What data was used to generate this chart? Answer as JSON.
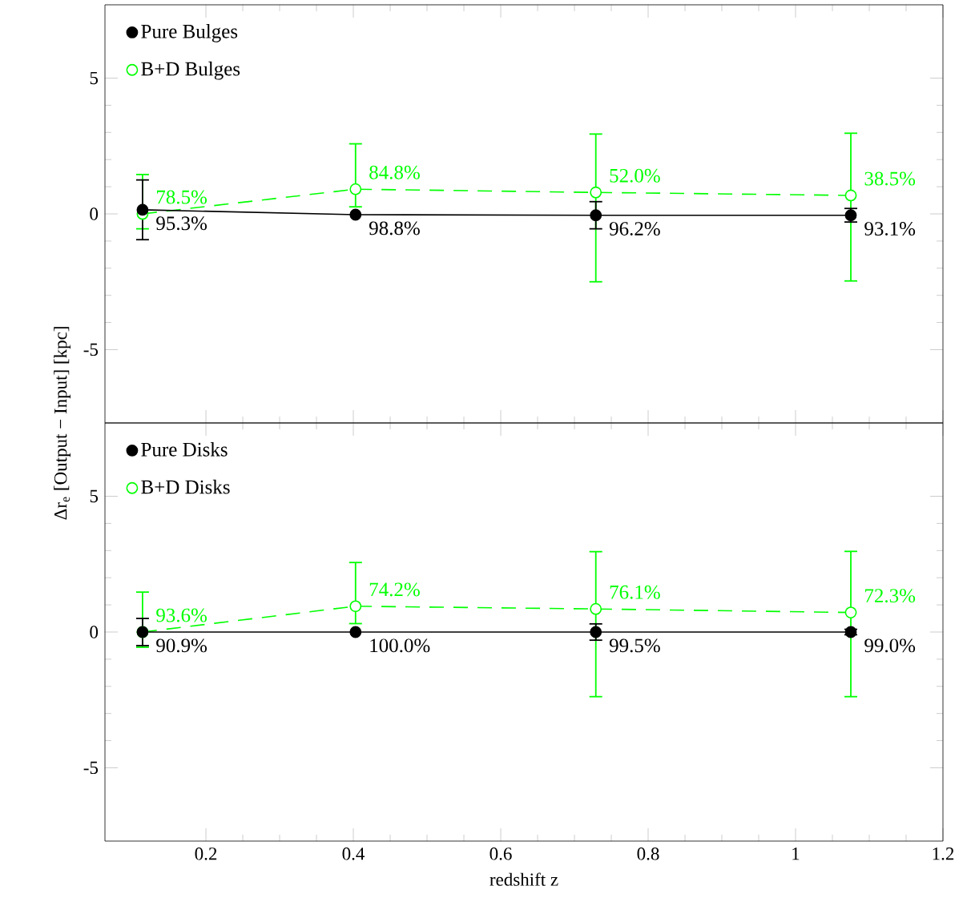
{
  "chart_data": [
    {
      "type": "line",
      "ylabel": "Δr$_{e}$ [Output − Input] [kpc]",
      "x": [
        0.114,
        0.403,
        0.729,
        1.075
      ],
      "xlim": [
        0.063,
        1.2
      ],
      "ylim": [
        -7.7,
        7.7
      ],
      "xticks": [
        0.2,
        0.4,
        0.6,
        0.8,
        1,
        1.2
      ],
      "yticks": [
        -5,
        0,
        5
      ],
      "tick_labels": "y",
      "legend": "top left",
      "marker": "circle",
      "series": [
        {
          "name": "Pure Bulges",
          "color": "#000000",
          "line_style": "solid",
          "values": [
            0.15,
            -0.03,
            -0.05,
            -0.05
          ],
          "errors": [
            1.1,
            null,
            0.5,
            0.25
          ]
        },
        {
          "name": "B+D Bulges",
          "color": "#00ff00",
          "line_style": "dashed",
          "values": [
            0.0,
            0.91,
            0.79,
            0.68
          ],
          "errors": [
            [
              -0.55,
              1.45
            ],
            [
              0.26,
              2.58
            ],
            [
              -2.5,
              2.94
            ],
            [
              -2.47,
              2.97
            ]
          ]
        }
      ],
      "annotations": [
        {
          "text": "95.3%",
          "x": 0.114,
          "y": 0.15
        },
        {
          "text": "98.8%",
          "x": 0.403,
          "y": -0.03
        },
        {
          "text": "96.2%",
          "x": 0.729,
          "y": -0.05
        },
        {
          "text": "93.1%",
          "x": 1.075,
          "y": -0.05
        },
        {
          "text": "78.5%",
          "x": 0.114,
          "y": 0.0
        },
        {
          "text": "84.8%",
          "x": 0.403,
          "y": 0.91
        },
        {
          "text": "52.0%",
          "x": 0.729,
          "y": 0.79
        },
        {
          "text": "38.5%",
          "x": 1.075,
          "y": 0.68
        }
      ]
    },
    {
      "type": "line",
      "xlabel": "redshift z",
      "x": [
        0.114,
        0.403,
        0.729,
        1.075
      ],
      "xlim": [
        0.063,
        1.2
      ],
      "ylim": [
        -7.7,
        7.7
      ],
      "xticks": [
        0.2,
        0.4,
        0.6,
        0.8,
        1,
        1.2
      ],
      "yticks": [
        -5,
        0,
        5
      ],
      "legend": "top left",
      "marker": "circle",
      "series": [
        {
          "name": "Pure Disks",
          "color": "#000000",
          "line_style": "solid",
          "values": [
            0.0,
            0.0,
            0.0,
            0.0
          ],
          "errors": [
            0.5,
            null,
            0.3,
            0.1
          ]
        },
        {
          "name": "B+D Disks",
          "color": "#00ff00",
          "line_style": "dashed",
          "values": [
            0.0,
            0.95,
            0.85,
            0.72
          ],
          "errors": [
            [
              -0.56,
              1.47
            ],
            [
              0.31,
              2.56
            ],
            [
              -2.38,
              2.96
            ],
            [
              -2.38,
              2.97
            ]
          ]
        }
      ],
      "annotations": [
        {
          "text": "90.9%",
          "x": 0.114,
          "y": 0.0
        },
        {
          "text": "100.0%",
          "x": 0.403,
          "y": 0.0
        },
        {
          "text": "99.5%",
          "x": 0.729,
          "y": 0.0
        },
        {
          "text": "99.0%",
          "x": 1.075,
          "y": 0.0
        },
        {
          "text": "93.6%",
          "x": 0.114,
          "y": 0.0
        },
        {
          "text": "74.2%",
          "x": 0.403,
          "y": 0.95
        },
        {
          "text": "76.1%",
          "x": 0.729,
          "y": 0.85
        },
        {
          "text": "72.3%",
          "x": 1.075,
          "y": 0.72
        }
      ]
    }
  ]
}
